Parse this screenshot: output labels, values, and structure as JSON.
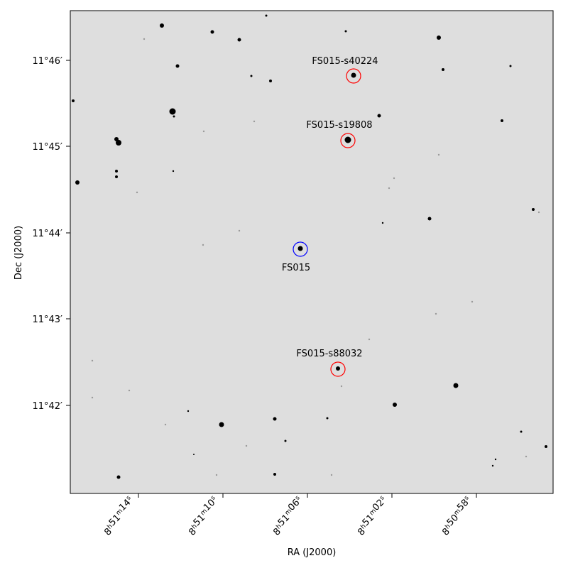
{
  "axes": {
    "xlabel": "RA (J2000)",
    "ylabel": "Dec (J2000)",
    "x_ticks": [
      {
        "label": "8h51m14s",
        "h": "8",
        "m": "51",
        "s": "14"
      },
      {
        "label": "8h51m10s",
        "h": "8",
        "m": "51",
        "s": "10"
      },
      {
        "label": "8h51m06s",
        "h": "8",
        "m": "51",
        "s": "06"
      },
      {
        "label": "8h51m02s",
        "h": "8",
        "m": "51",
        "s": "02"
      },
      {
        "label": "8h50m58s",
        "h": "8",
        "m": "50",
        "s": "58"
      }
    ],
    "y_ticks": [
      "11°46′",
      "11°45′",
      "11°44′",
      "11°43′",
      "11°42′"
    ]
  },
  "markers": [
    {
      "label": "FS015-s40224",
      "color": "#ff0000",
      "kind": "comparison"
    },
    {
      "label": "FS015-s19808",
      "color": "#ff0000",
      "kind": "comparison"
    },
    {
      "label": "FS015",
      "color": "#0000ff",
      "kind": "target"
    },
    {
      "label": "FS015-s88032",
      "color": "#ff0000",
      "kind": "comparison"
    }
  ],
  "image": {
    "background_color": "#dedede",
    "star_color": "#000000"
  }
}
